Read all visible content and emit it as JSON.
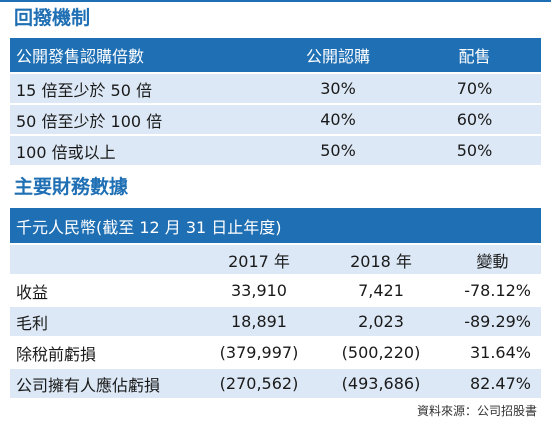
{
  "mechanism": {
    "title": "回撥機制",
    "header": [
      "公開發售認購倍數",
      "公開認購",
      "配售"
    ],
    "rows": [
      [
        "15 倍至少於 50 倍",
        "30%",
        "70%"
      ],
      [
        "50 倍至少於 100 倍",
        "40%",
        "60%"
      ],
      [
        "100 倍或以上",
        "50%",
        "50%"
      ]
    ]
  },
  "financials": {
    "title": "主要財務數據",
    "unit_header": "千元人民幣(截至 12 月 31 日止年度)",
    "columns": [
      "",
      "2017 年",
      "2018 年",
      "變動"
    ],
    "rows": [
      [
        "收益",
        "33,910",
        "7,421",
        "-78.12%"
      ],
      [
        "毛利",
        "18,891",
        "2,023",
        "-89.29%"
      ],
      [
        "除稅前虧損",
        "(379,997)",
        "(500,220)",
        "31.64%"
      ],
      [
        "公司擁有人應佔虧損",
        "(270,562)",
        "(493,686)",
        "82.47%"
      ]
    ]
  },
  "source": "資料來源：公司招股書",
  "colors": {
    "accent": "#1f6fb4",
    "row_alt": "#dce8f5"
  }
}
